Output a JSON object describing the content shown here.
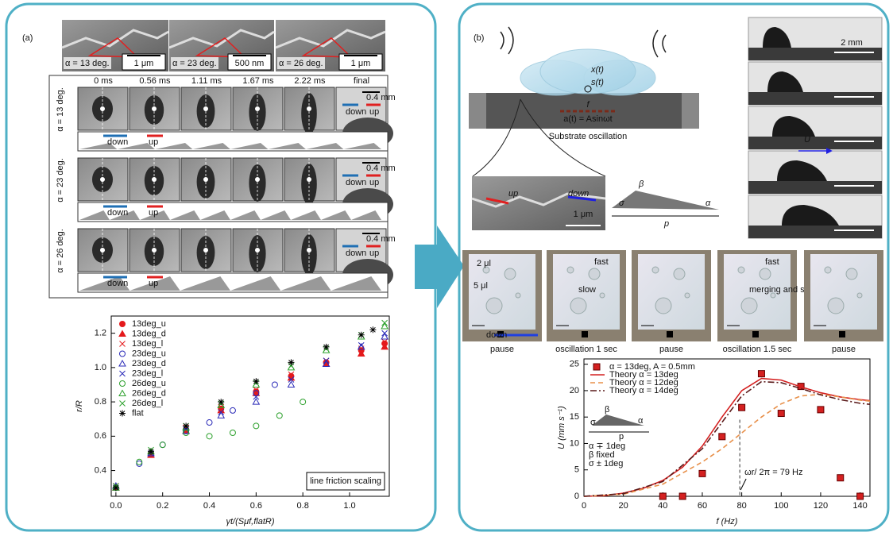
{
  "panel_a": {
    "label": "(a)",
    "sem": [
      {
        "angle": "α = 13 deg.",
        "scale": "1 μm"
      },
      {
        "angle": "α = 23 deg.",
        "scale": "500 nm"
      },
      {
        "angle": "α = 26 deg.",
        "scale": "1 μm"
      }
    ],
    "times": [
      "0 ms",
      "0.56 ms",
      "1.11 ms",
      "1.67 ms",
      "2.22 ms",
      "final"
    ],
    "rows": [
      {
        "angle": "α = 13 deg.",
        "scale": "0.4 mm",
        "down": "down",
        "up": "up",
        "strip_down": "down",
        "strip_up": "up"
      },
      {
        "angle": "α = 23 deg.",
        "scale": "0.4 mm",
        "down": "down",
        "up": "up",
        "strip_down": "down",
        "strip_up": "up"
      },
      {
        "angle": "α = 26 deg.",
        "scale": "0.4 mm",
        "down": "down",
        "up": "up",
        "strip_down": "down",
        "strip_up": "up"
      }
    ]
  },
  "panel_b": {
    "label": "(b)",
    "x_t": "x(t)",
    "s_t": "s(t)",
    "f": "f",
    "a_t": "a(t) = Asinωt",
    "oscillation": "Substrate oscillation",
    "sem_up": "up",
    "sem_down": "down",
    "sem_scale": "1 μm",
    "beta": "β",
    "sigma": "σ",
    "alpha": "α",
    "p": "p",
    "photo_scale": "2 mm",
    "U": "U",
    "frames": [
      {
        "caption": "pause",
        "notes": [
          "2 μl",
          "5 μl",
          "down"
        ]
      },
      {
        "caption": "oscillation 1 sec",
        "notes": [
          "fast",
          "slow"
        ]
      },
      {
        "caption": "pause",
        "notes": []
      },
      {
        "caption": "oscillation 1.5 sec",
        "notes": [
          "fast",
          "merging and stop"
        ]
      },
      {
        "caption": "pause",
        "notes": []
      }
    ]
  },
  "chart_data": [
    {
      "type": "scatter",
      "xlabel": "γt/(Sμf,flatR)",
      "ylabel": "r/R",
      "annotation": "line friction scaling",
      "xlim": [
        -0.02,
        1.17
      ],
      "ylim": [
        0.25,
        1.3
      ],
      "xticks": [
        {
          "value": 0,
          "label": "0.0"
        },
        0.2,
        0.4,
        0.6,
        0.8,
        {
          "value": 1,
          "label": "1.0"
        }
      ],
      "yticks": [
        0.4,
        0.6,
        0.8,
        {
          "value": 1,
          "label": "1.0"
        },
        1.2
      ],
      "series": [
        {
          "name": "13deg_u",
          "color": "#e41a1c",
          "marker": "filled-circle",
          "x": [
            0,
            0.15,
            0.3,
            0.45,
            0.6,
            0.75,
            0.9,
            1.05,
            1.15
          ],
          "values": [
            0.3,
            0.5,
            0.64,
            0.76,
            0.86,
            0.95,
            1.03,
            1.1,
            1.14
          ]
        },
        {
          "name": "13deg_d",
          "color": "#e41a1c",
          "marker": "filled-triangle",
          "x": [
            0,
            0.15,
            0.3,
            0.45,
            0.6,
            0.75,
            0.9,
            1.05,
            1.15
          ],
          "values": [
            0.3,
            0.49,
            0.63,
            0.75,
            0.85,
            0.94,
            1.02,
            1.08,
            1.12
          ]
        },
        {
          "name": "13deg_l",
          "color": "#e41a1c",
          "marker": "x",
          "x": [
            0,
            0.15,
            0.3,
            0.45,
            0.6,
            0.75,
            0.9,
            1.05,
            1.15
          ],
          "values": [
            0.31,
            0.5,
            0.65,
            0.77,
            0.87,
            0.96,
            1.04,
            1.11,
            1.15
          ]
        },
        {
          "name": "23deg_u",
          "color": "#2b2bb8",
          "marker": "open-circle",
          "x": [
            0,
            0.1,
            0.2,
            0.3,
            0.4,
            0.5,
            0.6,
            0.68
          ],
          "values": [
            0.3,
            0.44,
            0.55,
            0.63,
            0.68,
            0.75,
            0.85,
            0.9
          ]
        },
        {
          "name": "23deg_d",
          "color": "#2b2bb8",
          "marker": "open-triangle",
          "x": [
            0,
            0.15,
            0.3,
            0.45,
            0.6,
            0.75,
            0.9,
            1.05,
            1.15
          ],
          "values": [
            0.31,
            0.5,
            0.63,
            0.72,
            0.8,
            0.9,
            1.02,
            1.12,
            1.18
          ]
        },
        {
          "name": "23deg_l",
          "color": "#2b2bb8",
          "marker": "x",
          "x": [
            0,
            0.15,
            0.3,
            0.45,
            0.6,
            0.75,
            0.9,
            1.05,
            1.15
          ],
          "values": [
            0.3,
            0.5,
            0.64,
            0.74,
            0.83,
            0.93,
            1.04,
            1.13,
            1.2
          ]
        },
        {
          "name": "26deg_u",
          "color": "#2ca02c",
          "marker": "open-circle",
          "x": [
            0,
            0.1,
            0.2,
            0.3,
            0.4,
            0.5,
            0.6,
            0.7,
            0.8
          ],
          "values": [
            0.3,
            0.45,
            0.55,
            0.62,
            0.6,
            0.62,
            0.66,
            0.72,
            0.8
          ]
        },
        {
          "name": "26deg_d",
          "color": "#2ca02c",
          "marker": "open-triangle",
          "x": [
            0,
            0.15,
            0.3,
            0.45,
            0.6,
            0.75,
            0.9,
            1.05,
            1.15
          ],
          "values": [
            0.3,
            0.51,
            0.65,
            0.78,
            0.9,
            1.0,
            1.1,
            1.18,
            1.24
          ]
        },
        {
          "name": "26deg_l",
          "color": "#2ca02c",
          "marker": "x",
          "x": [
            0,
            0.15,
            0.3,
            0.45,
            0.6,
            0.75,
            0.9,
            1.05,
            1.15
          ],
          "values": [
            0.31,
            0.52,
            0.66,
            0.79,
            0.91,
            1.01,
            1.11,
            1.19,
            1.26
          ]
        },
        {
          "name": "flat",
          "color": "#000000",
          "marker": "asterisk",
          "x": [
            0,
            0.15,
            0.3,
            0.45,
            0.6,
            0.75,
            0.9,
            1.05,
            1.1
          ],
          "values": [
            0.3,
            0.51,
            0.66,
            0.8,
            0.92,
            1.03,
            1.12,
            1.19,
            1.22
          ]
        }
      ]
    },
    {
      "type": "line",
      "xlabel": "f (Hz)",
      "ylabel": "U (mm s⁻¹)",
      "xlim": [
        0,
        145
      ],
      "ylim": [
        0,
        26
      ],
      "xticks": [
        0,
        20,
        40,
        60,
        80,
        100,
        120,
        140
      ],
      "yticks": [
        0,
        5,
        10,
        15,
        20,
        25
      ],
      "inset": [
        "β",
        "σ",
        "α",
        "p",
        "α ∓ 1deg",
        "β    fixed",
        "σ ± 1deg"
      ],
      "marker": {
        "x": 79,
        "label": "ωr/ 2π = 79 Hz"
      },
      "series": [
        {
          "name": "α = 13deg, A = 0.5mm",
          "color": "#d42020",
          "style": "square",
          "x": [
            40,
            50,
            60,
            70,
            80,
            90,
            100,
            110,
            120,
            130,
            140
          ],
          "values": [
            0,
            0,
            4.3,
            11.3,
            16.8,
            23.2,
            15.7,
            20.8,
            16.4,
            3.5,
            0
          ]
        },
        {
          "name": "Theory α = 13deg",
          "color": "#d42020",
          "style": "solid",
          "x": [
            0,
            10,
            20,
            30,
            40,
            50,
            60,
            70,
            80,
            90,
            100,
            110,
            120,
            130,
            140,
            145
          ],
          "values": [
            0,
            0.1,
            0.6,
            1.5,
            3,
            5.5,
            9.5,
            15,
            20,
            22.3,
            22,
            20.7,
            19.6,
            18.8,
            18.3,
            18.1
          ]
        },
        {
          "name": "Theory α = 12deg",
          "color": "#e8904a",
          "style": "dashed",
          "x": [
            0,
            20,
            40,
            60,
            70,
            80,
            90,
            100,
            110,
            120,
            130,
            140,
            145
          ],
          "values": [
            0,
            0.4,
            2.3,
            6.5,
            9,
            12,
            15,
            17.5,
            19,
            19.3,
            18.8,
            18.2,
            18
          ]
        },
        {
          "name": "Theory α = 14deg",
          "color": "#5a1a1a",
          "style": "dashdot",
          "x": [
            0,
            20,
            40,
            60,
            70,
            80,
            90,
            100,
            110,
            120,
            130,
            140,
            145
          ],
          "values": [
            0,
            0.5,
            2.8,
            9,
            14,
            19,
            21.7,
            21.5,
            20.4,
            19.2,
            18.3,
            17.6,
            17.4
          ]
        }
      ]
    }
  ]
}
